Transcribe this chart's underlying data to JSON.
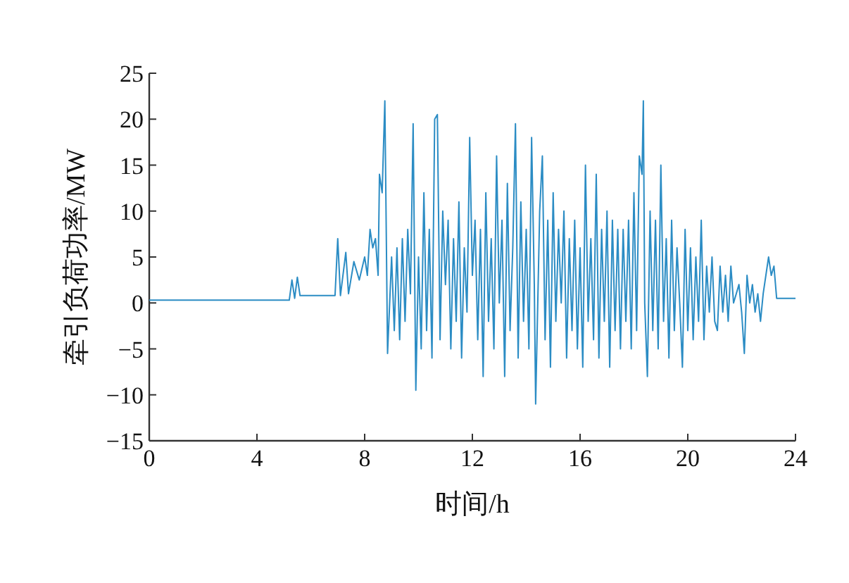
{
  "chart_data": {
    "type": "line",
    "xlabel": "时间/h",
    "ylabel": "牵引负荷功率/MW",
    "color": "#2b8cc4",
    "xlim": [
      0,
      24
    ],
    "ylim": [
      -15,
      25
    ],
    "xticks": [
      0,
      4,
      8,
      12,
      16,
      20,
      24
    ],
    "yticks": [
      {
        "value": -15,
        "label": "−15"
      },
      {
        "value": -10,
        "label": "−10"
      },
      {
        "value": -5,
        "label": "−5"
      },
      0,
      5,
      10,
      15,
      20,
      25
    ],
    "x": [
      0,
      5.2,
      5.3,
      5.4,
      5.5,
      5.6,
      6.9,
      7.0,
      7.1,
      7.3,
      7.4,
      7.6,
      7.8,
      8.0,
      8.1,
      8.2,
      8.3,
      8.4,
      8.5,
      8.55,
      8.65,
      8.75,
      8.85,
      9.0,
      9.1,
      9.2,
      9.3,
      9.4,
      9.5,
      9.6,
      9.7,
      9.8,
      9.9,
      10.0,
      10.1,
      10.2,
      10.3,
      10.4,
      10.5,
      10.6,
      10.7,
      10.8,
      10.9,
      11.0,
      11.1,
      11.2,
      11.3,
      11.4,
      11.5,
      11.6,
      11.7,
      11.8,
      11.9,
      12.0,
      12.1,
      12.2,
      12.3,
      12.4,
      12.5,
      12.6,
      12.7,
      12.8,
      12.9,
      13.0,
      13.1,
      13.2,
      13.3,
      13.4,
      13.5,
      13.6,
      13.7,
      13.8,
      13.9,
      14.0,
      14.1,
      14.2,
      14.3,
      14.35,
      14.5,
      14.6,
      14.7,
      14.8,
      14.9,
      15.0,
      15.1,
      15.2,
      15.3,
      15.4,
      15.5,
      15.6,
      15.7,
      15.8,
      15.9,
      16.0,
      16.1,
      16.2,
      16.3,
      16.4,
      16.5,
      16.6,
      16.7,
      16.8,
      16.9,
      17.0,
      17.1,
      17.2,
      17.3,
      17.4,
      17.5,
      17.6,
      17.7,
      17.8,
      17.9,
      18.0,
      18.1,
      18.2,
      18.3,
      18.35,
      18.4,
      18.5,
      18.6,
      18.7,
      18.8,
      18.9,
      19.0,
      19.1,
      19.2,
      19.3,
      19.4,
      19.5,
      19.6,
      19.7,
      19.8,
      19.9,
      20.0,
      20.1,
      20.2,
      20.3,
      20.4,
      20.5,
      20.6,
      20.7,
      20.8,
      20.9,
      21.0,
      21.1,
      21.2,
      21.3,
      21.4,
      21.5,
      21.6,
      21.7,
      21.8,
      21.9,
      22.0,
      22.1,
      22.2,
      22.3,
      22.4,
      22.5,
      22.6,
      22.7,
      22.8,
      23.0,
      23.1,
      23.2,
      23.3,
      24
    ],
    "values": [
      0.3,
      0.3,
      2.5,
      0.5,
      2.8,
      0.8,
      0.8,
      7,
      0.8,
      5.5,
      1,
      4.5,
      2.5,
      5,
      3,
      8,
      6,
      7,
      3,
      14,
      12,
      22,
      -5.5,
      5,
      -3,
      6,
      -4,
      7,
      -2,
      8,
      1,
      19.5,
      -9.5,
      5,
      -5,
      12,
      -3,
      8,
      -6,
      20,
      20.5,
      -4,
      10,
      2,
      9,
      -5,
      7,
      -2,
      11,
      -6,
      6,
      -1,
      18,
      3,
      9,
      -4,
      8,
      -8,
      12,
      -2,
      7,
      -5,
      16,
      0,
      9,
      -8,
      13,
      -3,
      6,
      19.5,
      -6,
      11,
      -2,
      8,
      -5,
      18,
      2,
      -11,
      10,
      16,
      -4,
      9,
      -7,
      12,
      -2,
      8,
      0,
      10,
      -6,
      7,
      -3,
      9,
      -5,
      6,
      -7,
      15,
      -2,
      7,
      -4,
      14,
      -6,
      8,
      -2,
      10,
      -7,
      9,
      -3,
      8,
      -5,
      8,
      -2,
      9,
      -5,
      12,
      -3,
      16,
      14,
      22,
      0,
      -8,
      10,
      -3,
      9,
      -5,
      15,
      -2,
      7,
      -6,
      9,
      -3,
      6,
      0,
      -7,
      8,
      -3,
      6,
      -4,
      5,
      -2,
      9,
      -4,
      4,
      -1,
      5,
      -2,
      -3,
      4,
      -1,
      3,
      -2,
      4,
      0,
      1,
      2,
      -1,
      -5.5,
      3,
      0,
      2,
      -1,
      1,
      -2,
      1,
      5,
      3,
      4,
      0.5,
      0.5
    ]
  }
}
